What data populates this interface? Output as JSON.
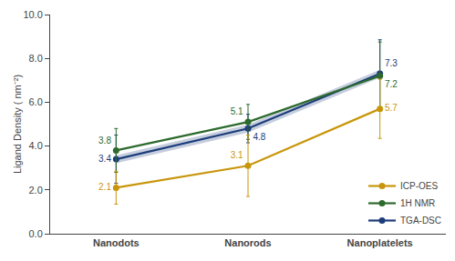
{
  "chart_data": {
    "type": "line",
    "categories": [
      "Nanodots",
      "Nanorods",
      "Nanoplatelets"
    ],
    "series": [
      {
        "name": "TGA-DSC",
        "color": "#1c3d7a",
        "values": [
          3.4,
          4.8,
          7.3
        ],
        "yerr": [
          1.1,
          0.65,
          1.55
        ],
        "band_lower": [
          3.22,
          4.62,
          7.12
        ],
        "band_upper": [
          3.58,
          4.98,
          7.48
        ]
      },
      {
        "name": "1H NMR",
        "color": "#2d6a2d",
        "values": [
          3.8,
          5.1,
          7.2
        ],
        "yerr": [
          1.0,
          0.8,
          1.55
        ]
      },
      {
        "name": "ICP-OES",
        "color": "#c8960c",
        "values": [
          2.1,
          3.1,
          5.7
        ],
        "yerr": [
          0.75,
          1.4,
          1.35
        ]
      }
    ],
    "ylabel": "Ligand Density ( nm⁻²)",
    "ylim": [
      0.0,
      10.0
    ],
    "yticks": [
      {
        "value": 0.0,
        "label": "0.0"
      },
      {
        "value": 2.0,
        "label": "2.0"
      },
      {
        "value": 4.0,
        "label": "4.0"
      },
      {
        "value": 6.0,
        "label": "6.0"
      },
      {
        "value": 8.0,
        "label": "8.0"
      },
      {
        "value": 10.0,
        "label": "10.0"
      }
    ],
    "grid": false,
    "legend": "lower right",
    "data_labels": true,
    "marker": "circle"
  }
}
